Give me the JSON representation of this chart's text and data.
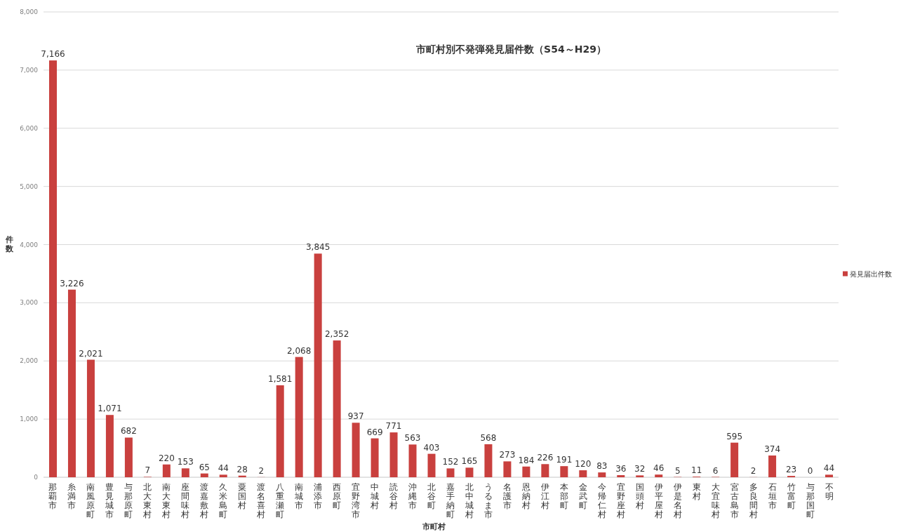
{
  "chart_data": {
    "type": "bar",
    "title": "市町村別不発弾発見届件数（S54～H29）",
    "xlabel": "市町村",
    "ylabel": "件数",
    "categories": [
      "那覇市",
      "糸満市",
      "南風原町",
      "豊見城市",
      "与那原町",
      "北大東村",
      "南大東村",
      "座間味村",
      "渡嘉敷村",
      "久米島町",
      "粟国村",
      "渡名喜村",
      "八重瀬町",
      "南城市",
      "浦添市",
      "西原町",
      "宜野湾市",
      "中城村",
      "読谷村",
      "沖縄市",
      "北谷町",
      "嘉手納町",
      "北中城村",
      "うるま市",
      "名護市",
      "恩納村",
      "伊江村",
      "本部町",
      "金武町",
      "今帰仁村",
      "宜野座村",
      "国頭村",
      "伊平屋村",
      "伊是名村",
      "東村",
      "大宜味村",
      "宮古島市",
      "多良間村",
      "石垣市",
      "竹富町",
      "与那国町",
      "不明"
    ],
    "series": [
      {
        "name": "発見届出件数",
        "color": "#c9403e",
        "values": [
          7166,
          3226,
          2021,
          1071,
          682,
          7,
          220,
          153,
          65,
          44,
          28,
          2,
          1581,
          2068,
          3845,
          2352,
          937,
          669,
          771,
          563,
          403,
          152,
          165,
          568,
          273,
          184,
          226,
          191,
          120,
          83,
          36,
          32,
          46,
          5,
          11,
          6,
          595,
          2,
          374,
          23,
          0,
          44
        ],
        "value_labels": [
          "7,166",
          "3,226",
          "2,021",
          "1,071",
          "682",
          "7",
          "220",
          "153",
          "65",
          "44",
          "28",
          "2",
          "1,581",
          "2,068",
          "3,845",
          "2,352",
          "937",
          "669",
          "771",
          "563",
          "403",
          "152",
          "165",
          "568",
          "273",
          "184",
          "226",
          "191",
          "120",
          "83",
          "36",
          "32",
          "46",
          "5",
          "11",
          "6",
          "595",
          "2",
          "374",
          "23",
          "0",
          "44"
        ]
      }
    ],
    "ylim": [
      0,
      8000
    ],
    "yticks": [
      0,
      {
        "value": 1000,
        "label": "1,000"
      },
      {
        "value": 2000,
        "label": "2,000"
      },
      {
        "value": 3000,
        "label": "3,000"
      },
      {
        "value": 4000,
        "label": "4,000"
      },
      {
        "value": 5000,
        "label": "5,000"
      },
      {
        "value": 6000,
        "label": "6,000"
      },
      {
        "value": 7000,
        "label": "7,000"
      },
      {
        "value": 8000,
        "label": "8,000"
      }
    ],
    "grid": "y",
    "legend": "right"
  }
}
